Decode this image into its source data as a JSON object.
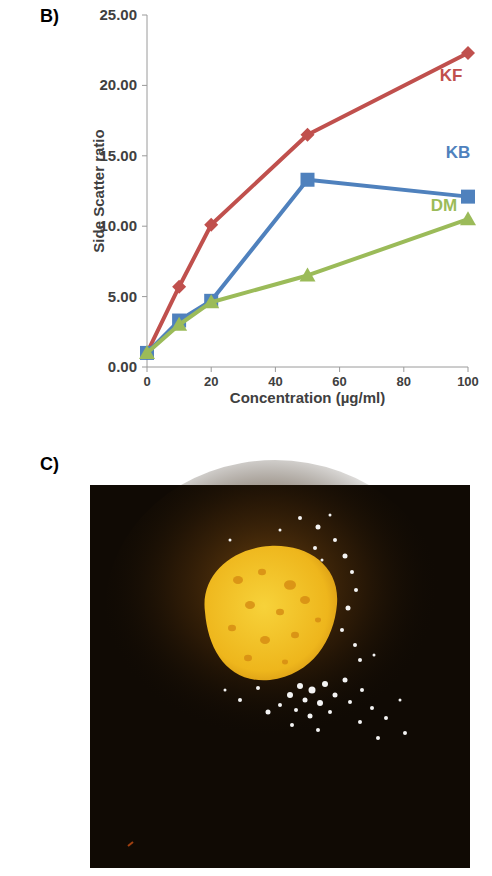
{
  "chart_data": {
    "type": "line",
    "x_label": "Concentration (µg/ml)",
    "y_label": "Side Scatter ratio",
    "x": [
      0,
      10,
      20,
      50,
      100
    ],
    "series": [
      {
        "name": "KF",
        "color": "#c0504d",
        "marker": "diamond",
        "values": [
          1.0,
          5.7,
          10.1,
          16.5,
          22.3
        ]
      },
      {
        "name": "KB",
        "color": "#4f81bd",
        "marker": "square",
        "values": [
          1.0,
          3.3,
          4.7,
          13.3,
          12.1
        ]
      },
      {
        "name": "DM",
        "color": "#9bbb59",
        "marker": "triangle",
        "values": [
          1.0,
          3.0,
          4.6,
          6.5,
          10.5
        ]
      }
    ],
    "xlim": [
      0,
      100
    ],
    "xticks": [
      0,
      20,
      40,
      60,
      80,
      100
    ],
    "ylim": [
      0,
      25
    ],
    "yticks": [
      {
        "value": 0,
        "label": "0.00"
      },
      {
        "value": 5,
        "label": "5.00"
      },
      {
        "value": 10,
        "label": "10.00"
      },
      {
        "value": 15,
        "label": "15.00"
      },
      {
        "value": 20,
        "label": "20.00"
      },
      {
        "value": 25,
        "label": "25.00"
      }
    ],
    "grid": false
  },
  "panels": {
    "b": {
      "label": "B)"
    },
    "c": {
      "label": "C)"
    }
  }
}
